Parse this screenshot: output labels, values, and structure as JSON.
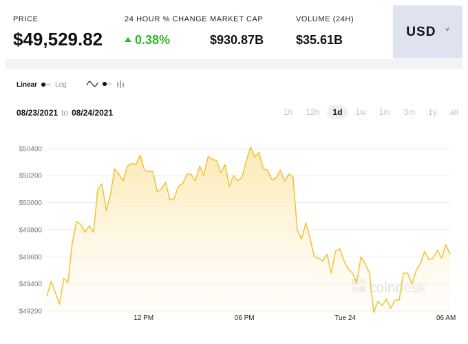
{
  "header": {
    "price": {
      "label": "PRICE",
      "value": "$49,529.82"
    },
    "change": {
      "label": "24 HOUR % CHANGE",
      "value": "0.38%"
    },
    "market_cap": {
      "label": "MARKET CAP",
      "value": "$930.87B"
    },
    "volume": {
      "label": "VOLUME (24H)",
      "value": "$35.61B"
    },
    "currency": {
      "label": "USD",
      "caret": "˅"
    }
  },
  "controls": {
    "scale_linear": "Linear",
    "scale_log": "Log",
    "date_from": "08/23/2021",
    "date_to_word": "to",
    "date_to": "08/24/2021",
    "ranges": [
      "1h",
      "12h",
      "1d",
      "1w",
      "1m",
      "3m",
      "1y",
      "all"
    ],
    "active_range": "1d"
  },
  "watermark": "coindesk",
  "colors": {
    "line": "#f2c230",
    "positive": "#2fb62f",
    "currency_bg": "#dfe3f0"
  },
  "chart_data": {
    "type": "area",
    "title": "",
    "xlabel": "",
    "ylabel": "",
    "y_ticks": [
      "$49200",
      "$49400",
      "$49600",
      "$49800",
      "$50000",
      "$50200",
      "$50400"
    ],
    "ylim": [
      49170,
      50480
    ],
    "x_ticks": [
      {
        "label": "12 PM",
        "t": 0.24
      },
      {
        "label": "06 PM",
        "t": 0.49
      },
      {
        "label": "Tue 24",
        "t": 0.74
      },
      {
        "label": "06 AM",
        "t": 0.99
      }
    ],
    "grid": true,
    "series": [
      {
        "values": [
          49310,
          49420,
          49340,
          49250,
          49440,
          49410,
          49700,
          49860,
          49840,
          49780,
          49830,
          49780,
          50100,
          50140,
          49940,
          50060,
          50250,
          50210,
          50160,
          50270,
          50290,
          50280,
          50350,
          50240,
          50230,
          50230,
          50080,
          50100,
          50150,
          50020,
          50030,
          50120,
          50140,
          50210,
          50210,
          50160,
          50270,
          50200,
          50340,
          50320,
          50310,
          50220,
          50280,
          50120,
          50200,
          50160,
          50190,
          50310,
          50410,
          50340,
          50370,
          50250,
          50240,
          50170,
          50180,
          50240,
          50160,
          50210,
          50190,
          49800,
          49730,
          49850,
          49740,
          49600,
          49590,
          49570,
          49620,
          49480,
          49640,
          49660,
          49570,
          49510,
          49480,
          49410,
          49600,
          49550,
          49480,
          49190,
          49270,
          49240,
          49290,
          49220,
          49280,
          49280,
          49480,
          49480,
          49400,
          49500,
          49550,
          49640,
          49580,
          49590,
          49650,
          49590,
          49690,
          49620
        ]
      }
    ]
  }
}
